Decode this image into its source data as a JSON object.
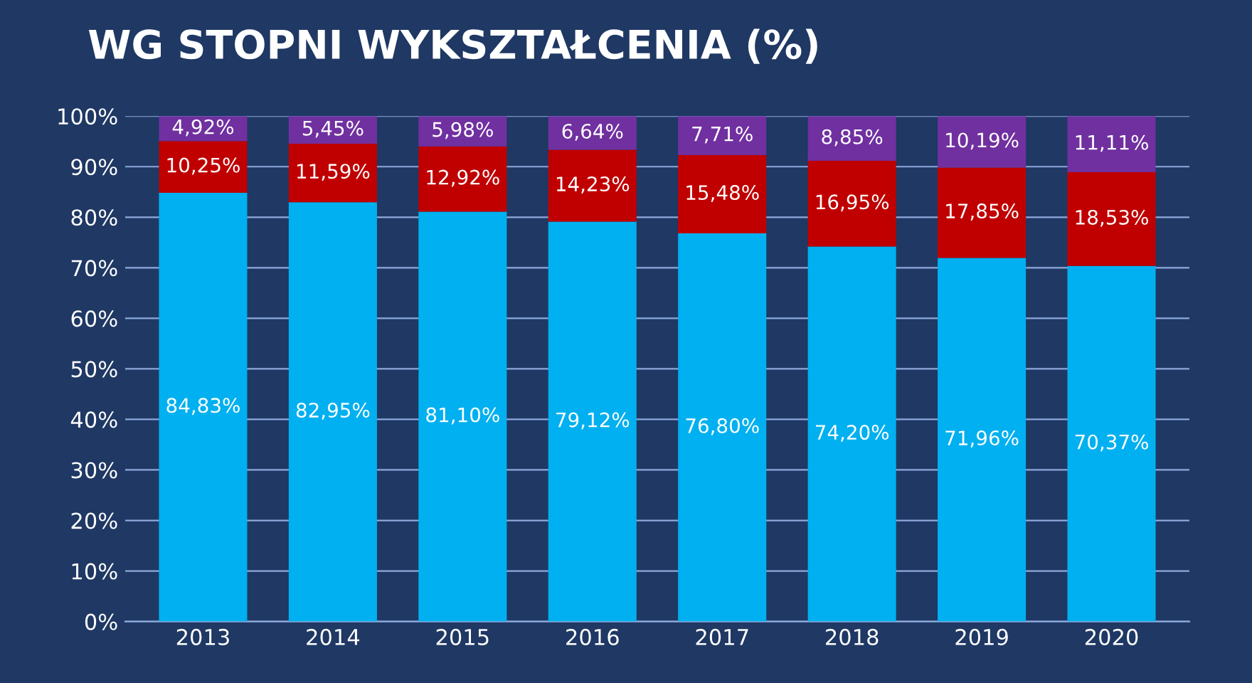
{
  "chart_data": {
    "type": "bar",
    "title": "WG STOPNI WYKSZTAŁCENIA (%)",
    "stacked": true,
    "categories": [
      "2013",
      "2014",
      "2015",
      "2016",
      "2017",
      "2018",
      "2019",
      "2020"
    ],
    "series": [
      {
        "color": "#00b0f0",
        "values": [
          84.83,
          82.95,
          81.1,
          79.12,
          76.8,
          74.2,
          71.96,
          70.37
        ],
        "value_labels": [
          "84,83%",
          "82,95%",
          "81,10%",
          "79,12%",
          "76,80%",
          "74,20%",
          "71,96%",
          "70,37%"
        ]
      },
      {
        "color": "#c00000",
        "values": [
          10.25,
          11.59,
          12.92,
          14.23,
          15.48,
          16.95,
          17.85,
          18.53
        ],
        "value_labels": [
          "10,25%",
          "11,59%",
          "12,92%",
          "14,23%",
          "15,48%",
          "16,95%",
          "17,85%",
          "18,53%"
        ]
      },
      {
        "color": "#7030a0",
        "values": [
          4.92,
          5.45,
          5.98,
          6.64,
          7.71,
          8.85,
          10.19,
          11.11
        ],
        "value_labels": [
          "4,92%",
          "5,45%",
          "5,98%",
          "6,64%",
          "7,71%",
          "8,85%",
          "10,19%",
          "11,11%"
        ]
      }
    ],
    "ylim": [
      0,
      100
    ],
    "yticks": [
      {
        "value": 0,
        "label": "0%"
      },
      {
        "value": 10,
        "label": "10%"
      },
      {
        "value": 20,
        "label": "20%"
      },
      {
        "value": 30,
        "label": "30%"
      },
      {
        "value": 40,
        "label": "40%"
      },
      {
        "value": 50,
        "label": "50%"
      },
      {
        "value": 60,
        "label": "60%"
      },
      {
        "value": 70,
        "label": "70%"
      },
      {
        "value": 80,
        "label": "80%"
      },
      {
        "value": 90,
        "label": "90%"
      },
      {
        "value": 100,
        "label": "100%"
      }
    ],
    "grid": "y"
  }
}
